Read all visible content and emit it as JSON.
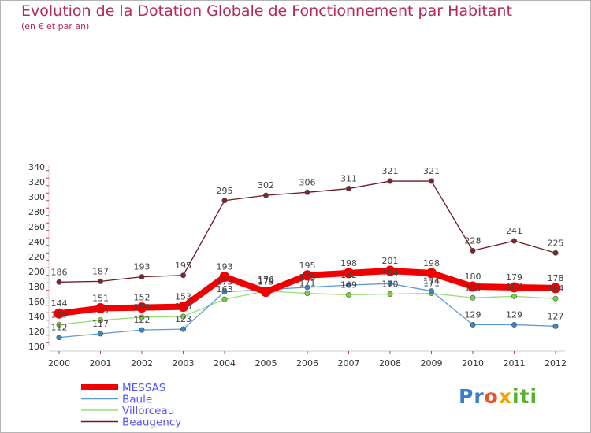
{
  "title": "Evolution de la Dotation Globale de Fonctionnement par Habitant",
  "subtitle": "(en € et par an)",
  "logo": {
    "part1": "Pr",
    "part2": "o",
    "part3": "x",
    "part4": "iti"
  },
  "chart_data": {
    "type": "line",
    "title": "Evolution de la Dotation Globale de Fonctionnement par Habitant",
    "subtitle": "(en € et par an)",
    "xlabel": "",
    "ylabel": "",
    "ylim": [
      100,
      340
    ],
    "yticks": [
      100,
      120,
      140,
      160,
      180,
      200,
      220,
      240,
      260,
      280,
      300,
      320,
      340
    ],
    "categories": [
      "2000",
      "2001",
      "2002",
      "2003",
      "2004",
      "2005",
      "2006",
      "2007",
      "2008",
      "2009",
      "2010",
      "2011",
      "2012"
    ],
    "legend_position": "bottom-left",
    "grid": false,
    "series": [
      {
        "name": "Beaugency",
        "color": "#6e1a24",
        "marker": "#7a2530",
        "values": [
          186,
          187,
          193,
          195,
          295,
          302,
          306,
          311,
          321,
          321,
          228,
          241,
          225
        ]
      },
      {
        "name": "Villorceau",
        "color": "#99dd77",
        "marker": "#7ccf3c",
        "values": [
          129,
          135,
          139,
          140,
          163,
          174,
          171,
          169,
          170,
          171,
          165,
          167,
          164
        ]
      },
      {
        "name": "Baule",
        "color": "#5b9bd5",
        "marker": "#3a84c8",
        "values": [
          112,
          117,
          122,
          123,
          173,
          176,
          179,
          182,
          184,
          174,
          129,
          129,
          127
        ]
      },
      {
        "name": "MESSAS",
        "color": "#f00000",
        "marker": "#f00000",
        "values": [
          144,
          151,
          152,
          153,
          193,
          173,
          195,
          198,
          201,
          198,
          180,
          179,
          178
        ]
      }
    ],
    "legend_order": [
      "MESSAS",
      "Baule",
      "Villorceau",
      "Beaugency"
    ]
  }
}
